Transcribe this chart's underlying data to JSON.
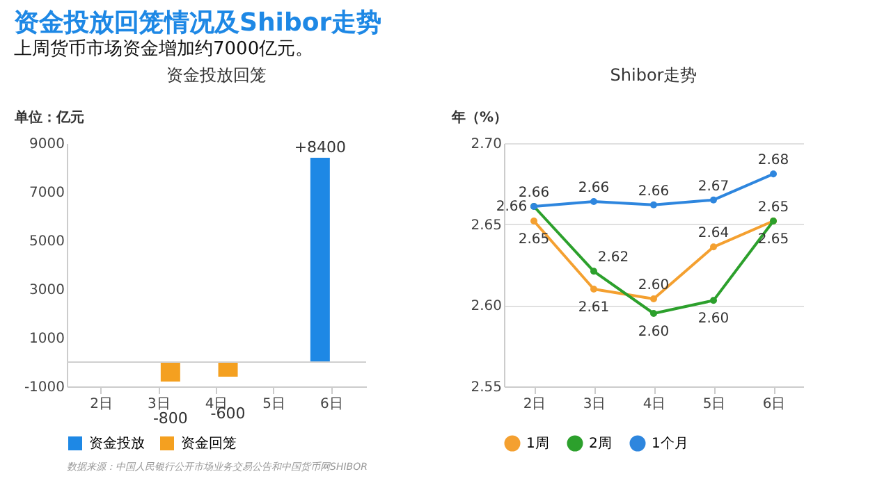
{
  "chart_data": [
    {
      "type": "bar",
      "title": "资金投放回笼",
      "ylabel": "单位：亿元",
      "categories": [
        "2日",
        "3日",
        "4日",
        "5日",
        "6日"
      ],
      "series": [
        {
          "name": "资金投放",
          "color": "#1e88e5",
          "values": [
            null,
            null,
            null,
            null,
            8400
          ],
          "value_labels": [
            null,
            null,
            null,
            null,
            "+8400"
          ]
        },
        {
          "name": "资金回笼",
          "color": "#f4a020",
          "values": [
            null,
            -800,
            -600,
            null,
            null
          ],
          "value_labels": [
            null,
            "-800",
            "-600",
            null,
            null
          ]
        }
      ],
      "ylim": [
        -1000,
        9000
      ],
      "yticks": [
        -1000,
        1000,
        3000,
        5000,
        7000,
        9000
      ],
      "grid": false,
      "legend": "bottom",
      "ref_lines": [
        {
          "axis": "y",
          "value": 0,
          "color": "#d0d0d0"
        }
      ],
      "annotations": [
        "资金投放回笼情况及Shibor走势",
        "上周货币市场资金增加约7000亿元。",
        "数据来源：中国人民银行公开市场业务交易公告和中国货币网SHIBOR"
      ]
    },
    {
      "type": "line",
      "title": "Shibor走势",
      "ylabel": "年（%）",
      "categories": [
        "2日",
        "3日",
        "4日",
        "5日",
        "6日"
      ],
      "series": [
        {
          "name": "1周",
          "color": "#f4a030",
          "values": [
            2.652,
            2.61,
            2.604,
            2.636,
            2.652
          ],
          "value_labels": [
            "2.65",
            "2.61",
            "2.60",
            "2.64",
            "2.65"
          ]
        },
        {
          "name": "2周",
          "color": "#2ca02c",
          "values": [
            2.661,
            2.621,
            2.595,
            2.603,
            2.652
          ],
          "value_labels": [
            "2.66",
            "2.62",
            "2.60",
            "2.60",
            "2.65"
          ]
        },
        {
          "name": "1个月",
          "color": "#2e86de",
          "values": [
            2.661,
            2.664,
            2.662,
            2.665,
            2.681
          ],
          "value_labels": [
            "2.66",
            "2.66",
            "2.66",
            "2.67",
            "2.68"
          ]
        }
      ],
      "ylim": [
        2.55,
        2.7
      ],
      "yticks": [
        2.55,
        {
          "value": 2.6,
          "label": "2.60"
        },
        2.65,
        {
          "value": 2.7,
          "label": "2.70"
        }
      ],
      "grid": "y",
      "legend": "bottom",
      "marker": "circle",
      "line_style": "solid"
    }
  ]
}
